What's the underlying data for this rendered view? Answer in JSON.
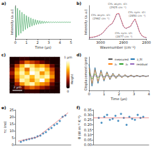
{
  "chart_data": [
    {
      "type": "line",
      "title": "a)",
      "xlabel": "Time (μs)",
      "ylabel": "Intensity (a.u.)",
      "xlim": [
        0,
        5
      ],
      "xticks": [
        0,
        1,
        2,
        3,
        4,
        5
      ],
      "ylim": [
        -1,
        1
      ],
      "tick_labels": "x",
      "x": [
        0,
        0.1,
        0.2,
        0.3,
        0.4,
        0.5,
        0.6,
        0.7,
        0.8,
        0.9,
        1,
        1.1,
        1.2,
        1.3,
        1.4,
        1.5,
        1.6,
        1.7,
        1.8,
        1.9,
        2,
        2.1,
        2.2,
        2.3,
        2.4,
        2.5,
        2.6,
        2.7,
        2.8,
        2.9,
        3,
        3.1,
        3.2,
        3.3,
        3.4,
        3.5,
        3.6,
        3.7,
        3.8,
        3.9,
        4,
        4.1,
        4.2,
        4.3,
        4.4,
        4.5,
        4.6,
        4.7,
        4.8,
        4.9,
        5
      ],
      "series": [
        {
          "color": "#2e9e4f",
          "values": [
            0.95,
            -0.9,
            0.84,
            -0.78,
            0.72,
            -0.66,
            0.6,
            -0.54,
            0.49,
            -0.44,
            0.4,
            -0.36,
            0.32,
            -0.29,
            0.26,
            -0.23,
            0.2,
            -0.18,
            0.16,
            -0.14,
            0.12,
            -0.11,
            0.1,
            -0.09,
            0.08,
            -0.07,
            0.06,
            -0.055,
            0.05,
            -0.045,
            0.04,
            -0.035,
            0.03,
            -0.03,
            0.025,
            -0.025,
            0.02,
            -0.02,
            0.018,
            -0.016,
            0.015,
            -0.014,
            0.013,
            -0.012,
            0.011,
            -0.01,
            0.01,
            -0.009,
            0.008,
            -0.008,
            0.007
          ]
        }
      ]
    },
    {
      "type": "line",
      "title": "b)",
      "xlabel": "Wavenumber (cm⁻¹)",
      "ylabel": "Intensity (a.u.)",
      "xlim": [
        3050,
        2800
      ],
      "xticks": [
        3000,
        2900,
        2800
      ],
      "ylim": [
        0,
        1.2
      ],
      "tick_labels": "x",
      "x": [
        3050,
        3040,
        3030,
        3020,
        3010,
        3000,
        2990,
        2980,
        2970,
        2960,
        2950,
        2940,
        2930,
        2920,
        2910,
        2900,
        2890,
        2880,
        2870,
        2860,
        2850,
        2840,
        2830,
        2820,
        2810,
        2800
      ],
      "series": [
        {
          "color": "#1f4fbf",
          "line_style": "dashed",
          "values": [
            0.04,
            0.05,
            0.06,
            0.08,
            0.11,
            0.15,
            0.21,
            0.31,
            0.41,
            0.49,
            0.54,
            0.69,
            0.88,
            0.9,
            0.67,
            0.44,
            0.37,
            0.41,
            0.44,
            0.59,
            0.7,
            0.49,
            0.24,
            0.11,
            0.06,
            0.04
          ]
        },
        {
          "color": "#d62728",
          "values": [
            0.05,
            0.06,
            0.07,
            0.09,
            0.12,
            0.16,
            0.22,
            0.32,
            0.42,
            0.5,
            0.55,
            0.7,
            0.9,
            0.92,
            0.68,
            0.45,
            0.38,
            0.42,
            0.45,
            0.6,
            0.72,
            0.5,
            0.25,
            0.12,
            0.07,
            0.05
          ]
        }
      ],
      "annotations": [
        {
          "text": "CH₃ asym. str.\n(2962 cm⁻¹)",
          "x": 2962,
          "y": 0.5
        },
        {
          "text": "CH₂ asym. str.\n(2925 cm⁻¹)",
          "x": 2925,
          "y": 0.95
        },
        {
          "text": "CH₃ sym. str.\n(2877 cm⁻¹)",
          "x": 2877,
          "y": 0.42
        },
        {
          "text": "CH₂ sym. str.\n(2850 cm⁻¹)",
          "x": 2850,
          "y": 0.72
        }
      ]
    },
    {
      "type": "heatmap",
      "title": "c)",
      "tick_labels": false,
      "cells": [
        [
          0.05,
          0.05,
          0.1,
          0.1,
          0.05,
          0.05,
          0.05,
          0.05,
          0.05,
          0.05
        ],
        [
          0.05,
          0.1,
          0.3,
          0.5,
          0.4,
          0.3,
          0.2,
          0.1,
          0.05,
          0.05
        ],
        [
          0.1,
          0.4,
          0.7,
          0.9,
          0.8,
          0.6,
          0.7,
          0.5,
          0.2,
          0.05
        ],
        [
          0.2,
          0.6,
          0.8,
          0.5,
          0.9,
          0.8,
          0.9,
          0.7,
          0.4,
          0.1
        ],
        [
          0.3,
          0.7,
          0.9,
          0.7,
          1.0,
          0.9,
          0.6,
          0.8,
          0.5,
          0.1
        ],
        [
          0.2,
          0.6,
          0.8,
          0.9,
          0.7,
          0.9,
          0.8,
          0.9,
          0.6,
          0.1
        ],
        [
          0.1,
          0.5,
          0.9,
          0.8,
          0.6,
          0.8,
          1.0,
          0.7,
          0.4,
          0.1
        ],
        [
          0.05,
          0.3,
          0.6,
          0.8,
          0.9,
          0.7,
          0.6,
          0.5,
          0.2,
          0.05
        ],
        [
          0.05,
          0.1,
          0.2,
          0.4,
          0.5,
          0.4,
          0.3,
          0.2,
          0.1,
          0.05
        ],
        [
          0.05,
          0.05,
          0.05,
          0.1,
          0.1,
          0.1,
          0.05,
          0.05,
          0.05,
          0.05
        ]
      ],
      "colorbar": {
        "range": [
          0,
          1
        ],
        "ticks": [
          {
            "value": 1,
            "label": "1 μm"
          },
          0
        ],
        "label": "Height"
      },
      "scale_bar": "2 μm"
    },
    {
      "type": "line",
      "title": "d)",
      "xlabel": "Time (μs)",
      "ylabel": "Displacement (pm)",
      "xlim": [
        0,
        4
      ],
      "xticks": [
        0,
        1,
        2,
        3,
        4
      ],
      "ylim": [
        -1.2,
        1.6
      ],
      "tick_labels": "x",
      "legend": "upper right",
      "x": [
        0,
        0.2,
        0.4,
        0.6,
        0.8,
        1,
        1.2,
        1.4,
        1.6,
        1.8,
        2,
        2.2,
        2.4,
        2.6,
        2.8,
        3,
        3.2,
        3.4,
        3.6,
        3.8,
        4
      ],
      "series": [
        {
          "name": "measured",
          "color": "#555555",
          "values": [
            1,
            -0.85,
            0.72,
            -0.6,
            0.5,
            -0.42,
            0.35,
            -0.29,
            0.24,
            -0.2,
            0.17,
            -0.14,
            0.12,
            -0.1,
            0.08,
            -0.07,
            0.06,
            -0.05,
            0.04,
            -0.03,
            0.03
          ]
        },
        {
          "name": "z_fit",
          "color": "#1f77b4",
          "values": [
            0.98,
            -0.84,
            0.71,
            -0.6,
            0.5,
            -0.41,
            0.35,
            -0.29,
            0.24,
            -0.2,
            0.16,
            -0.14,
            0.11,
            -0.1,
            0.08,
            -0.07,
            0.06,
            -0.05,
            0.04,
            -0.03,
            0.03
          ]
        },
        {
          "name": "z₁",
          "color": "#ff7f0e",
          "values": [
            0.7,
            -0.6,
            0.52,
            -0.45,
            0.38,
            -0.33,
            0.28,
            -0.24,
            0.2,
            -0.17,
            0.15,
            -0.13,
            0.11,
            -0.09,
            0.08,
            -0.07,
            0.06,
            -0.05,
            0.04,
            -0.04,
            0.03
          ]
        },
        {
          "name": "z₂",
          "color": "#2ca02c",
          "values": [
            0.3,
            -0.24,
            0.19,
            -0.15,
            0.12,
            -0.09,
            0.07,
            -0.05,
            0.04,
            -0.03,
            0.02,
            -0.01,
            0.01,
            -0.01,
            0,
            0,
            0,
            0,
            0,
            0,
            0
          ]
        },
        {
          "name": "residual",
          "color": "#9467bd",
          "values": [
            0.02,
            -0.01,
            0.01,
            0,
            0.01,
            -0.01,
            0,
            0,
            0,
            0,
            0.01,
            0,
            0.01,
            0,
            0,
            0,
            0,
            0,
            0,
            0,
            0
          ]
        }
      ]
    },
    {
      "type": "scatter",
      "title": "e)",
      "ylabel": "τc (ns)",
      "xlim": [
        0,
        10
      ],
      "ylim": [
        0,
        25
      ],
      "yticks": [
        0,
        5,
        10,
        15,
        20,
        25
      ],
      "tick_labels": "y",
      "x": [
        1,
        1.5,
        2,
        2.5,
        3,
        3.5,
        4,
        4.5,
        5,
        5.5,
        6,
        6.5,
        7,
        7.5,
        8,
        8.5,
        9
      ],
      "series": [
        {
          "color": "#1f77b4",
          "marker": "circle",
          "values": [
            2,
            3,
            3.5,
            4,
            4.5,
            5,
            6,
            6.5,
            8,
            9,
            11,
            12,
            14,
            15,
            17,
            20,
            21
          ]
        },
        {
          "type": "line",
          "color": "#e05050",
          "x": [
            0.5,
            4,
            9.5
          ],
          "values": [
            2.5,
            5.5,
            23
          ]
        }
      ]
    },
    {
      "type": "scatter",
      "title": "f)",
      "ylabel": "θ (W m⁻¹ K⁻¹)",
      "xlim": [
        0,
        10
      ],
      "ylim": [
        0,
        0.35
      ],
      "yticks": [
        {
          "value": 0,
          "label": "0.00"
        },
        0.05,
        {
          "value": 0.1,
          "label": "0.10"
        },
        0.15,
        {
          "value": 0.2,
          "label": "0.20"
        },
        0.25,
        {
          "value": 0.3,
          "label": "0.30"
        },
        0.35
      ],
      "tick_labels": "y",
      "x": [
        1,
        1.5,
        2,
        2.5,
        3,
        3.5,
        4,
        4.5,
        5,
        5.5,
        6,
        6.5,
        7,
        7.5,
        8,
        8.5,
        9
      ],
      "series": [
        {
          "color": "#1f77b4",
          "marker": "circle",
          "values": [
            0.27,
            0.22,
            0.28,
            0.3,
            0.25,
            0.26,
            0.29,
            0.24,
            0.31,
            0.27,
            0.2,
            0.28,
            0.26,
            0.25,
            0.3,
            0.27,
            0.28
          ]
        },
        {
          "type": "line",
          "color": "#e05050",
          "x": [
            0,
            10
          ],
          "values": [
            0.27,
            0.27
          ]
        }
      ]
    }
  ]
}
